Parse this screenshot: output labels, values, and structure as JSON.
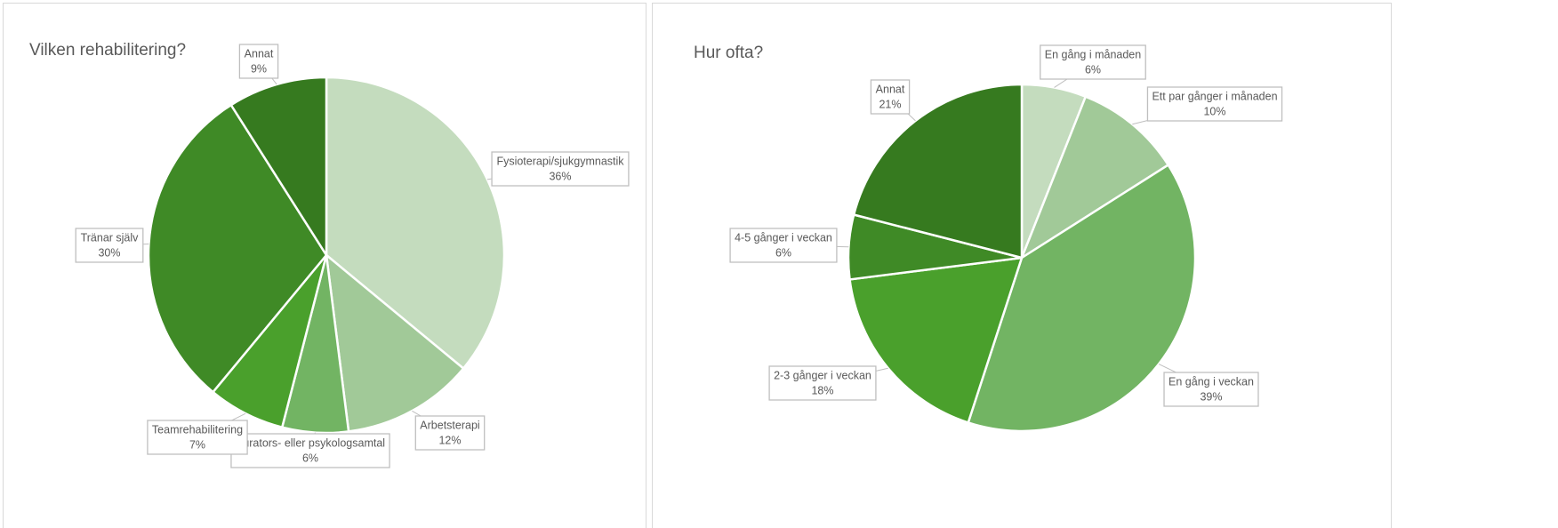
{
  "chart_data": [
    {
      "type": "pie",
      "title": "Vilken rehabilitering?",
      "categories": [
        "Fysioterapi/sjukgymnastik",
        "Arbetsterapi",
        "Kurators- eller psykologsamtal",
        "Teamrehabilitering",
        "Tränar själv",
        "Annat"
      ],
      "values": [
        36,
        12,
        6,
        7,
        30,
        9
      ],
      "value_labels": [
        "36%",
        "12%",
        "6%",
        "7%",
        "30%",
        "9%"
      ],
      "colors": [
        "#c4dcbe",
        "#a1c998",
        "#72b463",
        "#4aa02c",
        "#3f8a26",
        "#367a1f"
      ]
    },
    {
      "type": "pie",
      "title": "Hur ofta?",
      "categories": [
        "En gång i månaden",
        "Ett par gånger i månaden",
        "En gång i veckan",
        "2-3 gånger i veckan",
        "4-5 gånger i veckan",
        "Annat"
      ],
      "values": [
        6,
        10,
        39,
        18,
        6,
        21
      ],
      "value_labels": [
        "6%",
        "10%",
        "39%",
        "18%",
        "6%",
        "21%"
      ],
      "colors": [
        "#c4dcbe",
        "#a1c998",
        "#72b463",
        "#4aa02c",
        "#3f8a26",
        "#367a1f"
      ]
    }
  ]
}
